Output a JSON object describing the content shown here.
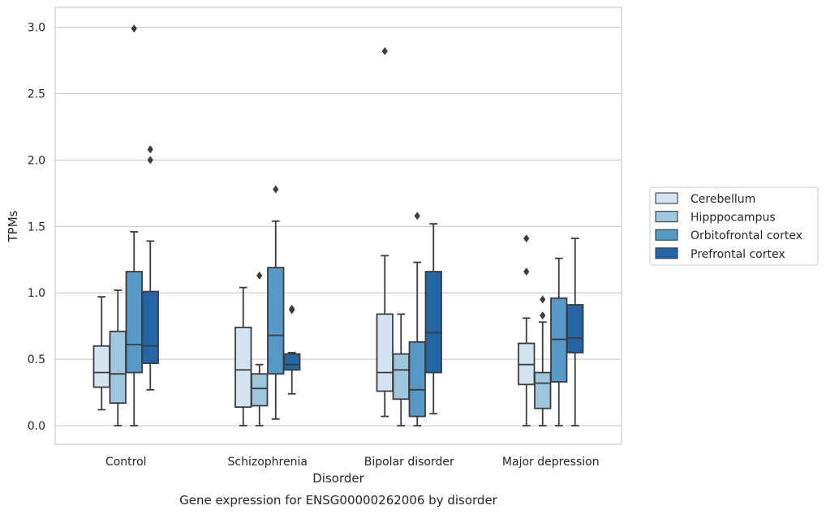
{
  "chart_data": {
    "type": "box",
    "title": "",
    "caption": "Gene expression for ENSG00000262006 by disorder",
    "xlabel": "Disorder",
    "ylabel": "TPMs",
    "ylim": [
      -0.14,
      3.15
    ],
    "yticks": [
      "0.0",
      "0.5",
      "1.0",
      "1.5",
      "2.0",
      "2.5",
      "3.0"
    ],
    "grid": "horizontal",
    "legend_position": "right",
    "categories": [
      "Control",
      "Schizophrenia",
      "Bipolar disorder",
      "Major depression"
    ],
    "series": [
      {
        "name": "Cerebellum",
        "color": "#d4e3f1",
        "boxes": [
          {
            "whislo": 0.12,
            "q1": 0.29,
            "med": 0.4,
            "q3": 0.6,
            "whishi": 0.97,
            "fliers": []
          },
          {
            "whislo": 0.0,
            "q1": 0.14,
            "med": 0.42,
            "q3": 0.74,
            "whishi": 1.04,
            "fliers": []
          },
          {
            "whislo": 0.07,
            "q1": 0.26,
            "med": 0.4,
            "q3": 0.84,
            "whishi": 1.28,
            "fliers": [
              2.82
            ]
          },
          {
            "whislo": 0.0,
            "q1": 0.31,
            "med": 0.46,
            "q3": 0.62,
            "whishi": 0.81,
            "fliers": [
              1.16,
              1.41
            ]
          }
        ]
      },
      {
        "name": "Hipppocampus",
        "color": "#9ec6dd",
        "boxes": [
          {
            "whislo": 0.0,
            "q1": 0.17,
            "med": 0.39,
            "q3": 0.71,
            "whishi": 1.02,
            "fliers": []
          },
          {
            "whislo": 0.0,
            "q1": 0.15,
            "med": 0.28,
            "q3": 0.39,
            "whishi": 0.46,
            "fliers": [
              1.13
            ]
          },
          {
            "whislo": 0.0,
            "q1": 0.2,
            "med": 0.42,
            "q3": 0.54,
            "whishi": 0.84,
            "fliers": []
          },
          {
            "whislo": 0.0,
            "q1": 0.13,
            "med": 0.32,
            "q3": 0.4,
            "whishi": 0.78,
            "fliers": [
              0.83,
              0.95
            ]
          }
        ]
      },
      {
        "name": "Orbitofrontal cortex",
        "color": "#5698c6",
        "boxes": [
          {
            "whislo": 0.0,
            "q1": 0.4,
            "med": 0.61,
            "q3": 1.16,
            "whishi": 1.46,
            "fliers": [
              2.99
            ]
          },
          {
            "whislo": 0.05,
            "q1": 0.39,
            "med": 0.68,
            "q3": 1.19,
            "whishi": 1.54,
            "fliers": [
              1.78
            ]
          },
          {
            "whislo": 0.0,
            "q1": 0.07,
            "med": 0.27,
            "q3": 0.63,
            "whishi": 1.23,
            "fliers": [
              1.58
            ]
          },
          {
            "whislo": 0.0,
            "q1": 0.33,
            "med": 0.65,
            "q3": 0.96,
            "whishi": 1.26,
            "fliers": []
          }
        ]
      },
      {
        "name": "Prefrontal cortex",
        "color": "#2465a5",
        "boxes": [
          {
            "whislo": 0.27,
            "q1": 0.47,
            "med": 0.6,
            "q3": 1.01,
            "whishi": 1.39,
            "fliers": [
              2.0,
              2.08
            ]
          },
          {
            "whislo": 0.24,
            "q1": 0.42,
            "med": 0.46,
            "q3": 0.54,
            "whishi": 0.55,
            "fliers": [
              0.87,
              0.88
            ]
          },
          {
            "whislo": 0.09,
            "q1": 0.4,
            "med": 0.7,
            "q3": 1.16,
            "whishi": 1.52,
            "fliers": []
          },
          {
            "whislo": 0.0,
            "q1": 0.55,
            "med": 0.66,
            "q3": 0.91,
            "whishi": 1.41,
            "fliers": []
          }
        ]
      }
    ]
  }
}
